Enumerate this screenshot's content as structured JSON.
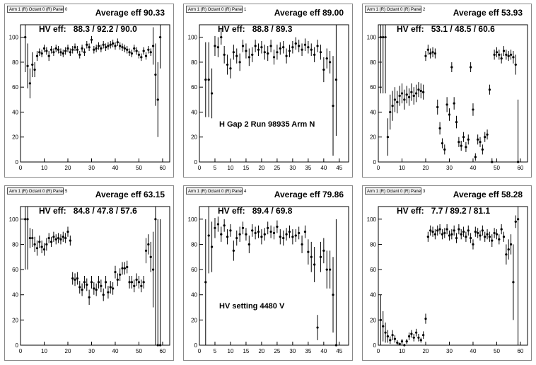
{
  "chart_data": [
    {
      "type": "scatter",
      "tab_label": "Arm 1 (R) Octant 0 (R) Panel 0",
      "title": "Average eff 90.33",
      "hv_label": "HV eff:",
      "hv_values": "88.3 / 92.2 / 90.0",
      "annotation": "",
      "xlim": [
        0,
        63
      ],
      "ylim": [
        0,
        110
      ],
      "xticks": [
        0,
        10,
        20,
        30,
        40,
        50,
        60
      ],
      "yticks": [
        0,
        20,
        40,
        60,
        80,
        100
      ],
      "x": [
        2,
        3,
        4,
        5,
        6,
        7,
        8,
        9,
        10,
        11,
        12,
        13,
        14,
        15,
        16,
        17,
        18,
        19,
        20,
        21,
        22,
        23,
        24,
        25,
        26,
        27,
        28,
        29,
        30,
        31,
        32,
        33,
        34,
        35,
        36,
        37,
        38,
        39,
        40,
        41,
        42,
        43,
        44,
        45,
        46,
        47,
        48,
        49,
        50,
        51,
        52,
        53,
        54,
        55,
        56,
        57,
        58,
        59
      ],
      "y": [
        100,
        77,
        63,
        78,
        74,
        85,
        88,
        87,
        91,
        89,
        85,
        90,
        88,
        91,
        90,
        88,
        87,
        89,
        91,
        88,
        90,
        92,
        90,
        86,
        91,
        88,
        94,
        92,
        98,
        90,
        91,
        93,
        91,
        94,
        92,
        93,
        94,
        95,
        93,
        96,
        93,
        92,
        91,
        90,
        88,
        87,
        91,
        89,
        86,
        84,
        89,
        85,
        90,
        88,
        93,
        70,
        50,
        100
      ],
      "err": [
        28,
        18,
        12,
        10,
        6,
        4,
        3,
        3,
        3,
        3,
        4,
        3,
        3,
        3,
        3,
        3,
        3,
        3,
        3,
        3,
        3,
        3,
        3,
        3,
        3,
        3,
        3,
        3,
        3,
        3,
        3,
        3,
        3,
        3,
        3,
        3,
        3,
        3,
        3,
        3,
        3,
        3,
        3,
        3,
        3,
        3,
        3,
        3,
        3,
        3,
        3,
        3,
        3,
        3,
        15,
        25,
        30,
        25
      ]
    },
    {
      "type": "scatter",
      "tab_label": "Arm 1 (R) Octant 0 (R) Panel 1",
      "title": "Average eff 89.00",
      "hv_label": "HV eff:",
      "hv_values": "88.8 / 89.3",
      "annotation": "H Gap 2 Run 98935 Arm N",
      "xlim": [
        0,
        48
      ],
      "ylim": [
        0,
        110
      ],
      "xticks": [
        0,
        5,
        10,
        15,
        20,
        25,
        30,
        35,
        40,
        45
      ],
      "yticks": [
        0,
        20,
        40,
        60,
        80,
        100
      ],
      "x": [
        2,
        3,
        4,
        5,
        6,
        7,
        8,
        9,
        10,
        11,
        12,
        13,
        14,
        15,
        16,
        17,
        18,
        19,
        20,
        21,
        22,
        23,
        24,
        25,
        26,
        27,
        28,
        29,
        30,
        31,
        32,
        33,
        34,
        35,
        36,
        37,
        38,
        39,
        40,
        41,
        42,
        43,
        44
      ],
      "y": [
        66,
        66,
        55,
        93,
        92,
        100,
        86,
        78,
        75,
        88,
        85,
        80,
        93,
        89,
        84,
        86,
        93,
        90,
        92,
        88,
        87,
        93,
        84,
        88,
        91,
        92,
        85,
        89,
        92,
        95,
        93,
        90,
        94,
        92,
        90,
        86,
        93,
        88,
        74,
        83,
        80,
        45,
        66
      ],
      "err": [
        30,
        30,
        20,
        8,
        8,
        6,
        7,
        8,
        8,
        6,
        6,
        7,
        5,
        6,
        7,
        6,
        5,
        5,
        5,
        6,
        6,
        5,
        6,
        6,
        5,
        5,
        6,
        5,
        5,
        5,
        5,
        5,
        5,
        5,
        5,
        6,
        5,
        6,
        10,
        8,
        9,
        40,
        45
      ]
    },
    {
      "type": "scatter",
      "tab_label": "Arm 1 (R) Octant 0 (R) Panel 2",
      "title": "Average eff 53.93",
      "hv_label": "HV eff:",
      "hv_values": "53.1 / 48.5 / 60.6",
      "annotation": "",
      "xlim": [
        0,
        63
      ],
      "ylim": [
        0,
        110
      ],
      "xticks": [
        0,
        10,
        20,
        30,
        40,
        50,
        60
      ],
      "yticks": [
        0,
        20,
        40,
        60,
        80,
        100
      ],
      "x": [
        1,
        2,
        3,
        4,
        5,
        6,
        7,
        8,
        9,
        10,
        11,
        12,
        13,
        14,
        15,
        16,
        17,
        18,
        19,
        20,
        21,
        22,
        23,
        24,
        25,
        26,
        27,
        28,
        29,
        30,
        31,
        32,
        33,
        34,
        35,
        36,
        37,
        38,
        39,
        40,
        41,
        42,
        43,
        44,
        45,
        46,
        47,
        48,
        49,
        50,
        51,
        52,
        53,
        54,
        55,
        56,
        57,
        58,
        59
      ],
      "y": [
        100,
        100,
        100,
        20,
        40,
        45,
        50,
        48,
        53,
        55,
        50,
        54,
        52,
        56,
        53,
        55,
        58,
        57,
        56,
        85,
        90,
        87,
        88,
        87,
        44,
        27,
        15,
        10,
        46,
        38,
        76,
        47,
        32,
        16,
        13,
        20,
        12,
        18,
        76,
        42,
        4,
        18,
        16,
        10,
        20,
        22,
        58,
        0,
        86,
        88,
        86,
        83,
        89,
        86,
        85,
        86,
        84,
        78,
        0
      ],
      "err": [
        45,
        45,
        45,
        15,
        14,
        12,
        10,
        9,
        8,
        8,
        8,
        7,
        7,
        7,
        7,
        7,
        6,
        6,
        6,
        4,
        4,
        4,
        4,
        4,
        6,
        5,
        4,
        4,
        6,
        5,
        4,
        5,
        5,
        4,
        4,
        4,
        4,
        4,
        4,
        5,
        3,
        4,
        4,
        4,
        4,
        4,
        4,
        3,
        4,
        4,
        4,
        4,
        4,
        4,
        4,
        4,
        5,
        8,
        50
      ]
    },
    {
      "type": "scatter",
      "tab_label": "Arm 1 (R) Octant 0 (R) Panel 5",
      "title": "Average eff 63.15",
      "hv_label": "HV eff:",
      "hv_values": "84.8 / 47.8 / 57.6",
      "annotation": "",
      "xlim": [
        0,
        63
      ],
      "ylim": [
        0,
        110
      ],
      "xticks": [
        0,
        10,
        20,
        30,
        40,
        50,
        60
      ],
      "yticks": [
        0,
        20,
        40,
        60,
        80,
        100
      ],
      "x": [
        2,
        3,
        4,
        5,
        6,
        7,
        8,
        9,
        10,
        11,
        12,
        13,
        14,
        15,
        16,
        17,
        18,
        19,
        20,
        21,
        22,
        23,
        24,
        25,
        26,
        27,
        28,
        29,
        30,
        31,
        32,
        33,
        34,
        35,
        36,
        37,
        38,
        39,
        40,
        41,
        42,
        43,
        44,
        45,
        46,
        47,
        48,
        49,
        50,
        51,
        52,
        53,
        54,
        55,
        56,
        57,
        58,
        59
      ],
      "y": [
        100,
        100,
        85,
        85,
        80,
        77,
        82,
        78,
        76,
        80,
        85,
        82,
        86,
        84,
        85,
        84,
        86,
        85,
        90,
        83,
        53,
        52,
        53,
        46,
        44,
        50,
        48,
        38,
        50,
        45,
        44,
        50,
        47,
        40,
        50,
        42,
        46,
        45,
        58,
        52,
        56,
        61,
        61,
        62,
        50,
        50,
        47,
        52,
        50,
        47,
        50,
        75,
        80,
        70,
        60,
        100,
        0,
        0
      ],
      "err": [
        40,
        40,
        8,
        7,
        6,
        6,
        5,
        5,
        5,
        5,
        4,
        4,
        4,
        4,
        4,
        4,
        4,
        4,
        4,
        4,
        5,
        5,
        5,
        5,
        5,
        5,
        5,
        6,
        5,
        5,
        5,
        5,
        5,
        5,
        5,
        5,
        5,
        5,
        5,
        5,
        5,
        5,
        5,
        5,
        5,
        5,
        5,
        5,
        5,
        5,
        5,
        10,
        8,
        12,
        30,
        100,
        100,
        100
      ]
    },
    {
      "type": "scatter",
      "tab_label": "Arm 1 (R) Octant 0 (R) Panel 4",
      "title": "Average eff 79.86",
      "hv_label": "HV eff:",
      "hv_values": "89.4 / 69.8",
      "annotation": "HV setting 4480 V",
      "xlim": [
        0,
        48
      ],
      "ylim": [
        0,
        110
      ],
      "xticks": [
        0,
        5,
        10,
        15,
        20,
        25,
        30,
        35,
        40,
        45
      ],
      "yticks": [
        0,
        20,
        40,
        60,
        80,
        100
      ],
      "x": [
        2,
        3,
        4,
        5,
        6,
        7,
        8,
        9,
        10,
        11,
        12,
        13,
        14,
        15,
        16,
        17,
        18,
        19,
        20,
        21,
        22,
        23,
        24,
        25,
        26,
        27,
        28,
        29,
        30,
        31,
        32,
        33,
        34,
        35,
        36,
        37,
        38,
        39,
        40,
        41,
        42,
        43,
        44
      ],
      "y": [
        50,
        87,
        78,
        93,
        96,
        88,
        95,
        86,
        91,
        75,
        85,
        88,
        93,
        88,
        80,
        91,
        89,
        90,
        86,
        88,
        93,
        90,
        89,
        94,
        86,
        85,
        88,
        90,
        86,
        87,
        89,
        80,
        90,
        74,
        70,
        64,
        14,
        70,
        75,
        60,
        60,
        40,
        0
      ],
      "err": [
        50,
        30,
        20,
        8,
        6,
        6,
        5,
        6,
        5,
        8,
        6,
        6,
        5,
        5,
        7,
        5,
        5,
        5,
        6,
        5,
        5,
        5,
        5,
        5,
        6,
        6,
        5,
        5,
        6,
        5,
        5,
        7,
        5,
        10,
        12,
        14,
        10,
        12,
        10,
        15,
        15,
        30,
        100
      ]
    },
    {
      "type": "scatter",
      "tab_label": "Arm 1 (R) Octant 0 (R) Panel 3",
      "title": "Average eff 58.28",
      "hv_label": "HV eff:",
      "hv_values": "7.7 / 89.2 / 81.1",
      "annotation": "",
      "xlim": [
        0,
        63
      ],
      "ylim": [
        0,
        110
      ],
      "xticks": [
        0,
        10,
        20,
        30,
        40,
        50,
        60
      ],
      "yticks": [
        0,
        20,
        40,
        60,
        80,
        100
      ],
      "x": [
        1,
        2,
        3,
        4,
        5,
        6,
        7,
        8,
        9,
        10,
        11,
        12,
        13,
        14,
        15,
        16,
        17,
        18,
        19,
        20,
        21,
        22,
        23,
        24,
        25,
        26,
        27,
        28,
        29,
        30,
        31,
        32,
        33,
        34,
        35,
        36,
        37,
        38,
        39,
        40,
        41,
        42,
        43,
        44,
        45,
        46,
        47,
        48,
        49,
        50,
        51,
        52,
        53,
        54,
        55,
        56,
        57,
        58,
        59
      ],
      "y": [
        20,
        15,
        10,
        7,
        4,
        8,
        5,
        2,
        1,
        3,
        0,
        3,
        7,
        9,
        6,
        10,
        6,
        4,
        8,
        21,
        86,
        91,
        90,
        88,
        91,
        92,
        88,
        89,
        92,
        87,
        88,
        91,
        85,
        92,
        88,
        90,
        86,
        91,
        85,
        80,
        90,
        89,
        87,
        91,
        86,
        88,
        86,
        83,
        89,
        88,
        84,
        92,
        86,
        72,
        76,
        80,
        50,
        98,
        100
      ],
      "err": [
        20,
        12,
        8,
        5,
        3,
        4,
        3,
        2,
        1,
        2,
        1,
        2,
        3,
        3,
        3,
        3,
        3,
        2,
        3,
        4,
        4,
        4,
        4,
        4,
        4,
        4,
        4,
        4,
        4,
        4,
        4,
        4,
        4,
        4,
        4,
        4,
        4,
        4,
        4,
        4,
        4,
        4,
        4,
        4,
        4,
        4,
        4,
        5,
        4,
        4,
        4,
        4,
        4,
        8,
        8,
        8,
        30,
        5,
        100
      ]
    }
  ]
}
